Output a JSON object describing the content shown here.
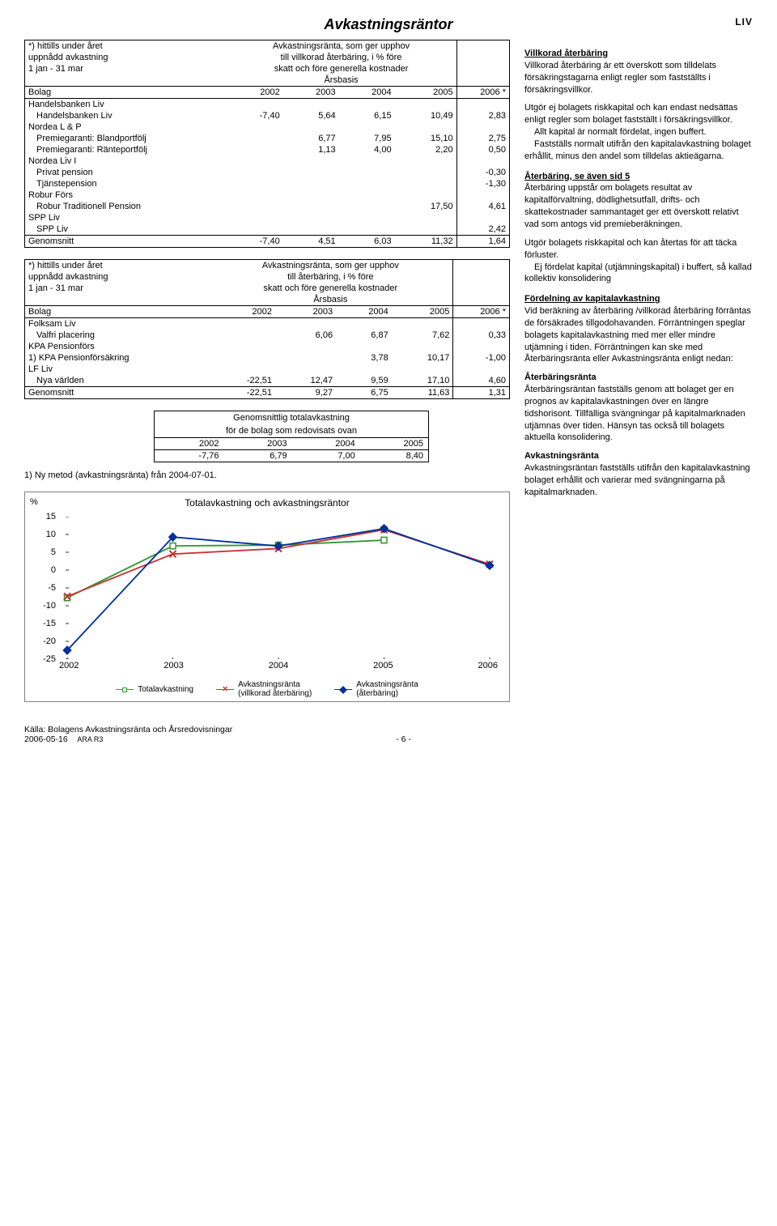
{
  "page": {
    "title": "Avkastningsräntor",
    "corner": "LIV",
    "pagenum": "- 6 -"
  },
  "section1": {
    "note_lines": [
      "*) hittills under året",
      "uppnådd avkastning",
      "1 jan - 31 mar"
    ],
    "desc_lines": [
      "Avkastningsränta, som ger upphov",
      "till villkorad återbäring, i % före",
      "skatt och före generella kostnader"
    ],
    "basis": "Årsbasis",
    "hdr_label": "Bolag",
    "years": [
      "2002",
      "2003",
      "2004",
      "2005",
      "2006 *"
    ],
    "rows": [
      {
        "label": "Handelsbanken Liv",
        "indent": 0,
        "vals": [
          "",
          "",
          "",
          "",
          ""
        ]
      },
      {
        "label": "Handelsbanken Liv",
        "indent": 1,
        "vals": [
          "-7,40",
          "5,64",
          "6,15",
          "10,49",
          "2,83"
        ]
      },
      {
        "label": "Nordea L & P",
        "indent": 0,
        "vals": [
          "",
          "",
          "",
          "",
          ""
        ]
      },
      {
        "label": "Premiegaranti: Blandportfölj",
        "indent": 1,
        "vals": [
          "",
          "6,77",
          "7,95",
          "15,10",
          "2,75"
        ]
      },
      {
        "label": "Premiegaranti: Ränteportfölj",
        "indent": 1,
        "vals": [
          "",
          "1,13",
          "4,00",
          "2,20",
          "0,50"
        ]
      },
      {
        "label": "Nordea Liv I",
        "indent": 0,
        "vals": [
          "",
          "",
          "",
          "",
          ""
        ]
      },
      {
        "label": "Privat pension",
        "indent": 1,
        "vals": [
          "",
          "",
          "",
          "",
          "-0,30"
        ]
      },
      {
        "label": "Tjänstepension",
        "indent": 1,
        "vals": [
          "",
          "",
          "",
          "",
          "-1,30"
        ]
      },
      {
        "label": "Robur Förs",
        "indent": 0,
        "vals": [
          "",
          "",
          "",
          "",
          ""
        ]
      },
      {
        "label": "Robur Traditionell Pension",
        "indent": 1,
        "vals": [
          "",
          "",
          "",
          "17,50",
          "4,61"
        ]
      },
      {
        "label": "SPP Liv",
        "indent": 0,
        "vals": [
          "",
          "",
          "",
          "",
          ""
        ]
      },
      {
        "label": "SPP Liv",
        "indent": 1,
        "vals": [
          "",
          "",
          "",
          "",
          "2,42"
        ]
      },
      {
        "label": "Genomsnitt",
        "indent": 0,
        "vals": [
          "-7,40",
          "4,51",
          "6,03",
          "11,32",
          "1,64"
        ]
      }
    ]
  },
  "section2": {
    "note_lines": [
      "*) hittills under året",
      "uppnådd avkastning",
      "1 jan - 31 mar"
    ],
    "desc_lines": [
      "Avkastningsränta, som ger upphov",
      "till återbäring, i % före",
      "skatt och före generella kostnader"
    ],
    "basis": "Årsbasis",
    "hdr_label": "Bolag",
    "years": [
      "2002",
      "2003",
      "2004",
      "2005",
      "2006 *"
    ],
    "rows": [
      {
        "label": "Folksam Liv",
        "indent": 0,
        "vals": [
          "",
          "",
          "",
          "",
          ""
        ]
      },
      {
        "label": "Valfri placering",
        "indent": 1,
        "vals": [
          "",
          "6,06",
          "6,87",
          "7,62",
          "0,33"
        ]
      },
      {
        "label": "KPA Pensionförs",
        "indent": 0,
        "vals": [
          "",
          "",
          "",
          "",
          ""
        ]
      },
      {
        "label": "1) KPA Pensionförsäkring",
        "indent": 0,
        "vals": [
          "",
          "",
          "3,78",
          "10,17",
          "-1,00"
        ]
      },
      {
        "label": "LF  Liv",
        "indent": 0,
        "vals": [
          "",
          "",
          "",
          "",
          ""
        ]
      },
      {
        "label": "Nya världen",
        "indent": 1,
        "vals": [
          "-22,51",
          "12,47",
          "9,59",
          "17,10",
          "4,60"
        ]
      },
      {
        "label": "Genomsnitt",
        "indent": 0,
        "vals": [
          "-22,51",
          "9,27",
          "6,75",
          "11,63",
          "1,31"
        ]
      }
    ]
  },
  "summary": {
    "title1": "Genomsnittlig totalavkastning",
    "title2": "för de bolag som redovisats ovan",
    "years": [
      "2002",
      "2003",
      "2004",
      "2005"
    ],
    "vals": [
      "-7,76",
      "6,79",
      "7,00",
      "8,40"
    ]
  },
  "footnote1": "1) Ny metod (avkastningsränta) från 2004-07-01.",
  "chart": {
    "title": "Totalavkastning och avkastningsräntor",
    "ylabel": "%",
    "x_categories": [
      "2002",
      "2003",
      "2004",
      "2005",
      "2006"
    ],
    "y_ticks": [
      15,
      10,
      5,
      0,
      -5,
      -10,
      -15,
      -20,
      -25
    ],
    "ylim": [
      -25,
      15
    ],
    "series": [
      {
        "name": "Totalavkastning",
        "color": "#339933",
        "marker": "square",
        "y": [
          -7.76,
          6.79,
          7.0,
          8.4,
          null
        ],
        "legend_sub": ""
      },
      {
        "name": "Avkastningsränta",
        "color": "#cc3333",
        "marker": "x",
        "y": [
          -7.4,
          4.51,
          6.03,
          11.32,
          1.64
        ],
        "legend_sub": "(villkorad återbäring)"
      },
      {
        "name": "Avkastningsränta",
        "color": "#003399",
        "marker": "diamond",
        "y": [
          -22.51,
          9.27,
          6.75,
          11.63,
          1.31
        ],
        "legend_sub": "(återbäring)"
      }
    ],
    "grid_color": "#000",
    "bg": "#ffffff"
  },
  "right": {
    "h1": "Villkorad återbäring",
    "p1": "Villkorad återbäring är ett överskott som tilldelats försäkringstagarna enligt regler som fastställts i försäkringsvillkor.",
    "p2": "Utgör ej bolagets riskkapital och kan endast nedsättas enligt regler som bolaget fastställt i försäkringsvillkor.",
    "p2b": "Allt kapital är normalt fördelat, ingen buffert.",
    "p2c": "Fastställs normalt utifrån den kapitalavkastning bolaget erhållit, minus den andel som tilldelas aktieägarna.",
    "h2": "Återbäring, se även sid 5",
    "p3": "Återbäring uppstår om bolagets resultat av kapitalförvaltning, dödlighetsutfall, drifts- och skattekostnader sammantaget ger ett överskott relativt vad som antogs vid premieberäkningen.",
    "p4": "Utgör bolagets riskkapital och kan återtas för att täcka förluster.",
    "p4b": "Ej fördelat kapital (utjämningskapital) i buffert, så kallad kollektiv konsolidering",
    "h3": "Fördelning av kapitalavkastning",
    "p5": "Vid beräkning av återbäring /villkorad återbäring förräntas de försäkrades tillgodohavanden. Förräntningen speglar bolagets kapitalavkastning med mer eller mindre utjämning i tiden. Förräntningen kan ske med Återbäringsränta eller Avkastningsränta enligt nedan:",
    "h4": "Återbäringsränta",
    "p6": "Återbäringsräntan fastställs genom att bolaget ger en prognos av kapitalavkastningen över en längre tidshorisont. Tillfälliga svängningar på kapitalmarknaden utjämnas över tiden. Hänsyn tas också till bolagets aktuella konsolidering.",
    "h5": "Avkastningsränta",
    "p7": "Avkastningsräntan fastställs utifrån den kapitalavkastning bolaget erhållit och varierar med svängningarna på kapitalmarknaden."
  },
  "footer": {
    "source": "Källa: Bolagens Avkastningsränta och Årsredovisningar",
    "date": "2006-05-16",
    "code": "ARA R3"
  }
}
